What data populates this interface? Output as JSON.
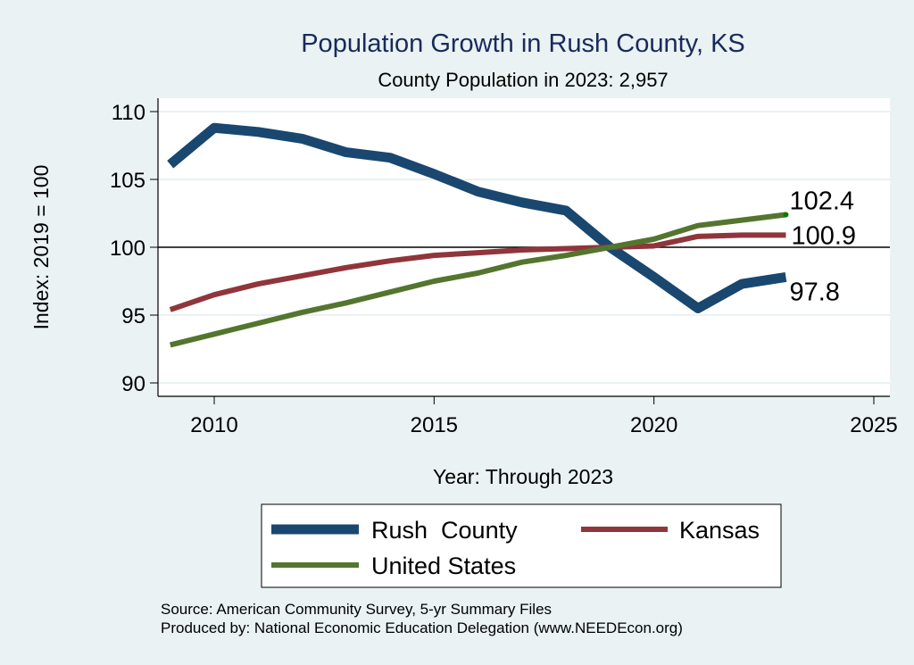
{
  "chart_data": {
    "type": "line",
    "title": "Population Growth in Rush County, KS",
    "subtitle": "County Population in 2023: 2,957",
    "xlabel": "Year: Through 2023",
    "ylabel": "Index: 2019 = 100",
    "xlim": [
      2009,
      2025
    ],
    "ylim": [
      90,
      110
    ],
    "xticks": [
      2010,
      2015,
      2020,
      2025
    ],
    "yticks": [
      90,
      95,
      100,
      105,
      110
    ],
    "reference_line": 100,
    "grid": true,
    "legend_position": "bottom",
    "x": [
      2009,
      2010,
      2011,
      2012,
      2013,
      2014,
      2015,
      2016,
      2017,
      2018,
      2019,
      2020,
      2021,
      2022,
      2023
    ],
    "series": [
      {
        "name": "Rush  County",
        "color": "#1a476f",
        "values": [
          106.1,
          108.8,
          108.5,
          108.0,
          107.0,
          106.6,
          105.4,
          104.1,
          103.3,
          102.7,
          100.0,
          97.8,
          95.5,
          97.3,
          97.8
        ],
        "end_label": "97.8"
      },
      {
        "name": "Kansas",
        "color": "#90353b",
        "values": [
          95.4,
          96.5,
          97.3,
          97.9,
          98.5,
          99.0,
          99.4,
          99.6,
          99.8,
          99.9,
          100.0,
          100.1,
          100.8,
          100.9,
          100.9
        ],
        "end_label": "100.9"
      },
      {
        "name": "United States",
        "color": "#55752f",
        "values": [
          92.8,
          93.6,
          94.4,
          95.2,
          95.9,
          96.7,
          97.5,
          98.1,
          98.9,
          99.4,
          100.0,
          100.6,
          101.6,
          102.0,
          102.4
        ],
        "end_label": "102.4"
      }
    ],
    "notes": [
      "Source: American Community Survey, 5-yr Summary Files",
      "Produced by: National Economic Education Delegation (www.NEEDEcon.org)"
    ]
  }
}
